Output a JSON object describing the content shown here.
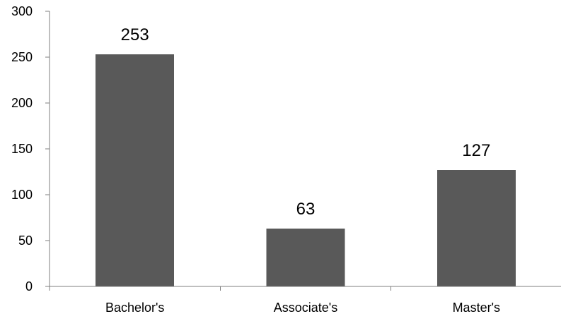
{
  "chart_data": {
    "type": "bar",
    "title": "",
    "xlabel": "",
    "ylabel": "",
    "categories": [
      "Bachelor's",
      "Associate's",
      "Master's"
    ],
    "values": [
      253,
      63,
      127
    ],
    "data_labels": [
      "253",
      "63",
      "127"
    ],
    "ylim": [
      0,
      300
    ],
    "yticks": [
      0,
      50,
      100,
      150,
      200,
      250,
      300
    ],
    "ytick_labels": [
      "0",
      "50",
      "100",
      "150",
      "200",
      "250",
      "300"
    ],
    "grid": false,
    "legend": "none",
    "colors": {
      "bar": "#595959",
      "axis": "#7f7f7f",
      "text": "#000000"
    }
  }
}
